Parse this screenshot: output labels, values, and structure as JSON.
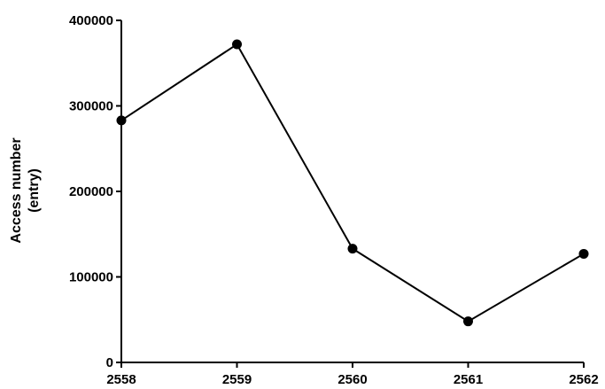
{
  "chart_data": {
    "type": "line",
    "title": "",
    "xlabel": "",
    "ylabel_lines": [
      "Access number",
      "(entry)"
    ],
    "x": [
      "2558",
      "2559",
      "2560",
      "2561",
      "2562"
    ],
    "series": [
      {
        "values": [
          283000,
          372000,
          133000,
          48000,
          127000
        ],
        "color": "#000000"
      }
    ],
    "xlim": [
      "2558",
      "2562"
    ],
    "ylim": [
      0,
      400000
    ],
    "yticks": [
      0,
      100000,
      200000,
      300000,
      400000
    ],
    "ytick_labels": [
      "0",
      "100000",
      "200000",
      "300000",
      "400000"
    ],
    "grid": false,
    "legend": "none",
    "marker": "filled-circle"
  }
}
